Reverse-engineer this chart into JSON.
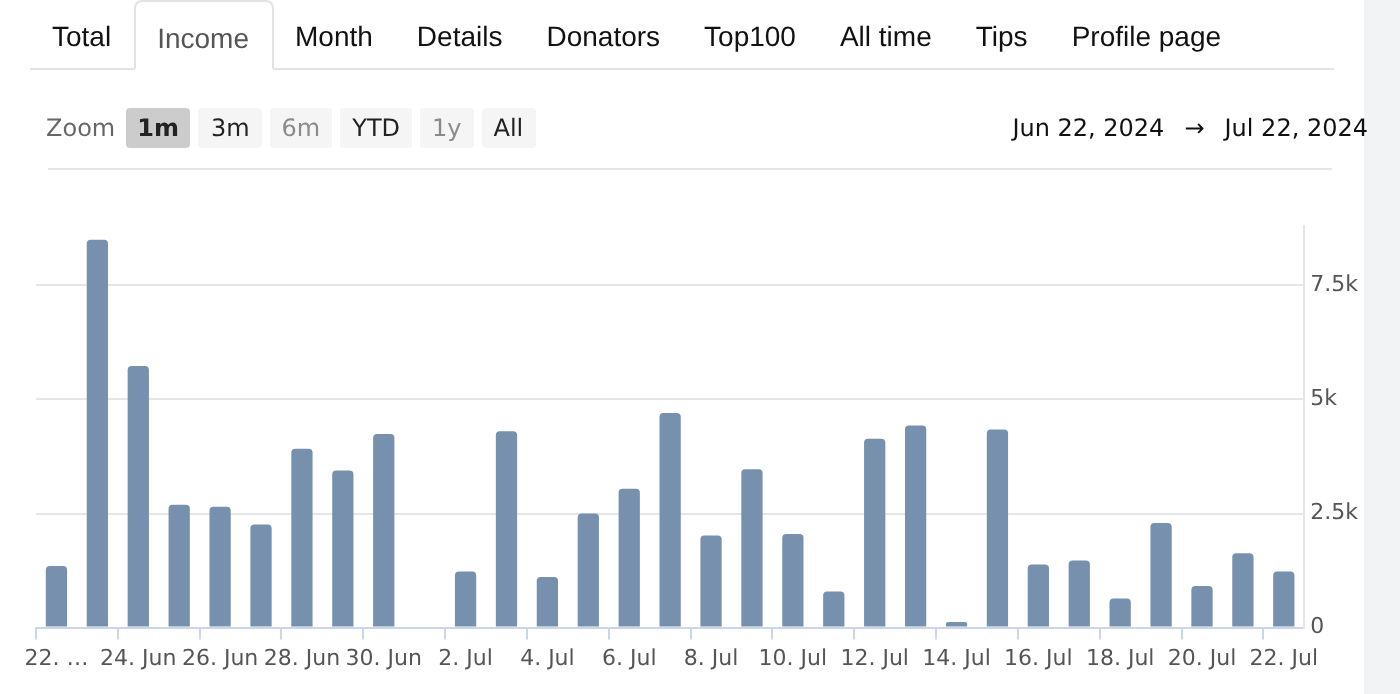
{
  "chart_data": {
    "type": "bar",
    "categories": [
      "22. …",
      null,
      "24. Jun",
      null,
      "26. Jun",
      null,
      "28. Jun",
      null,
      "30. Jun",
      null,
      "2. Jul",
      null,
      "4. Jul",
      null,
      "6. Jul",
      null,
      "8. Jul",
      null,
      "10. Jul",
      null,
      "12. Jul",
      null,
      "14. Jul",
      null,
      "16. Jul",
      null,
      "18. Jul",
      null,
      "20. Jul",
      null,
      "22. Jul"
    ],
    "values": [
      1350,
      8500,
      5730,
      2690,
      2650,
      2260,
      3920,
      3440,
      4240,
      0,
      1230,
      4300,
      1110,
      2500,
      3040,
      4700,
      2020,
      3470,
      2050,
      790,
      4140,
      4430,
      120,
      4340,
      1380,
      1470,
      640,
      2290,
      910,
      1630,
      1230
    ],
    "color": "#7790ad",
    "ylim": [
      0,
      8800
    ],
    "yticks": [
      0,
      {
        "value": 2500,
        "label": "2.5k"
      },
      {
        "value": 5000,
        "label": "5k"
      },
      {
        "value": 7500,
        "label": "7.5k"
      }
    ],
    "grid": "y",
    "annotations": [
      "Total",
      "Income",
      "Month",
      "Details",
      "Donators",
      "Top100",
      "All time",
      "Tips",
      "Profile page",
      "Zoom",
      "1m",
      "3m",
      "6m",
      "YTD",
      "1y",
      "All",
      "Jun 22, 2024",
      "→",
      "Jul 22, 2024"
    ]
  }
}
